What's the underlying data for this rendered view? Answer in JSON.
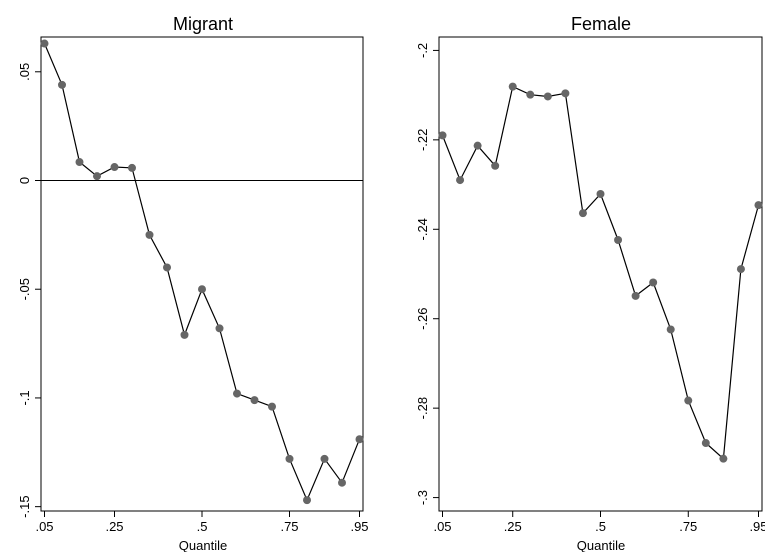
{
  "chart_data": [
    {
      "type": "line",
      "title": "Migrant",
      "xlabel": "Quantile",
      "ylabel": "",
      "x": [
        0.05,
        0.1,
        0.15,
        0.2,
        0.25,
        0.3,
        0.35,
        0.4,
        0.45,
        0.5,
        0.55,
        0.6,
        0.65,
        0.7,
        0.75,
        0.8,
        0.85,
        0.9,
        0.95
      ],
      "series": [
        {
          "values": [
            0.063,
            0.044,
            0.0085,
            0.002,
            0.0062,
            0.0058,
            -0.025,
            -0.04,
            -0.071,
            -0.05,
            -0.068,
            -0.098,
            -0.101,
            -0.104,
            -0.128,
            -0.147,
            -0.128,
            -0.139,
            -0.119
          ]
        }
      ],
      "xlim": [
        0.04,
        0.96
      ],
      "ylim": [
        -0.152,
        0.066
      ],
      "xticks": [
        0.05,
        0.25,
        0.5,
        0.75,
        0.95
      ],
      "xtick_labels": [
        ".05",
        ".25",
        ".5",
        ".75",
        ".95"
      ],
      "yticks": [
        0.05,
        0,
        -0.05,
        -0.1,
        -0.15
      ],
      "ytick_labels": [
        ".05",
        "0",
        "-.05",
        "-.1",
        "-.15"
      ],
      "reference_line_y": 0,
      "grid": false,
      "colors": {
        "line": "#000000",
        "marker": "#666666"
      }
    },
    {
      "type": "line",
      "title": "Female",
      "xlabel": "Quantile",
      "ylabel": "",
      "x": [
        0.05,
        0.1,
        0.15,
        0.2,
        0.25,
        0.3,
        0.35,
        0.4,
        0.45,
        0.5,
        0.55,
        0.6,
        0.65,
        0.7,
        0.75,
        0.8,
        0.85,
        0.9,
        0.95
      ],
      "series": [
        {
          "values": [
            -0.219,
            -0.229,
            -0.2213,
            -0.2258,
            -0.2081,
            -0.2099,
            -0.2103,
            -0.2096,
            -0.2364,
            -0.2321,
            -0.2424,
            -0.2549,
            -0.2519,
            -0.2624,
            -0.2783,
            -0.2878,
            -0.2913,
            -0.2489,
            -0.2346
          ]
        }
      ],
      "xlim": [
        0.04,
        0.96
      ],
      "ylim": [
        -0.303,
        -0.197
      ],
      "xticks": [
        0.05,
        0.25,
        0.5,
        0.75,
        0.95
      ],
      "xtick_labels": [
        ".05",
        ".25",
        ".5",
        ".75",
        ".95"
      ],
      "yticks": [
        -0.2,
        -0.22,
        -0.24,
        -0.26,
        -0.28,
        -0.3
      ],
      "ytick_labels": [
        "-.2",
        "-.22",
        "-.24",
        "-.26",
        "-.28",
        "-.3"
      ],
      "grid": false,
      "colors": {
        "line": "#000000",
        "marker": "#666666"
      }
    }
  ]
}
